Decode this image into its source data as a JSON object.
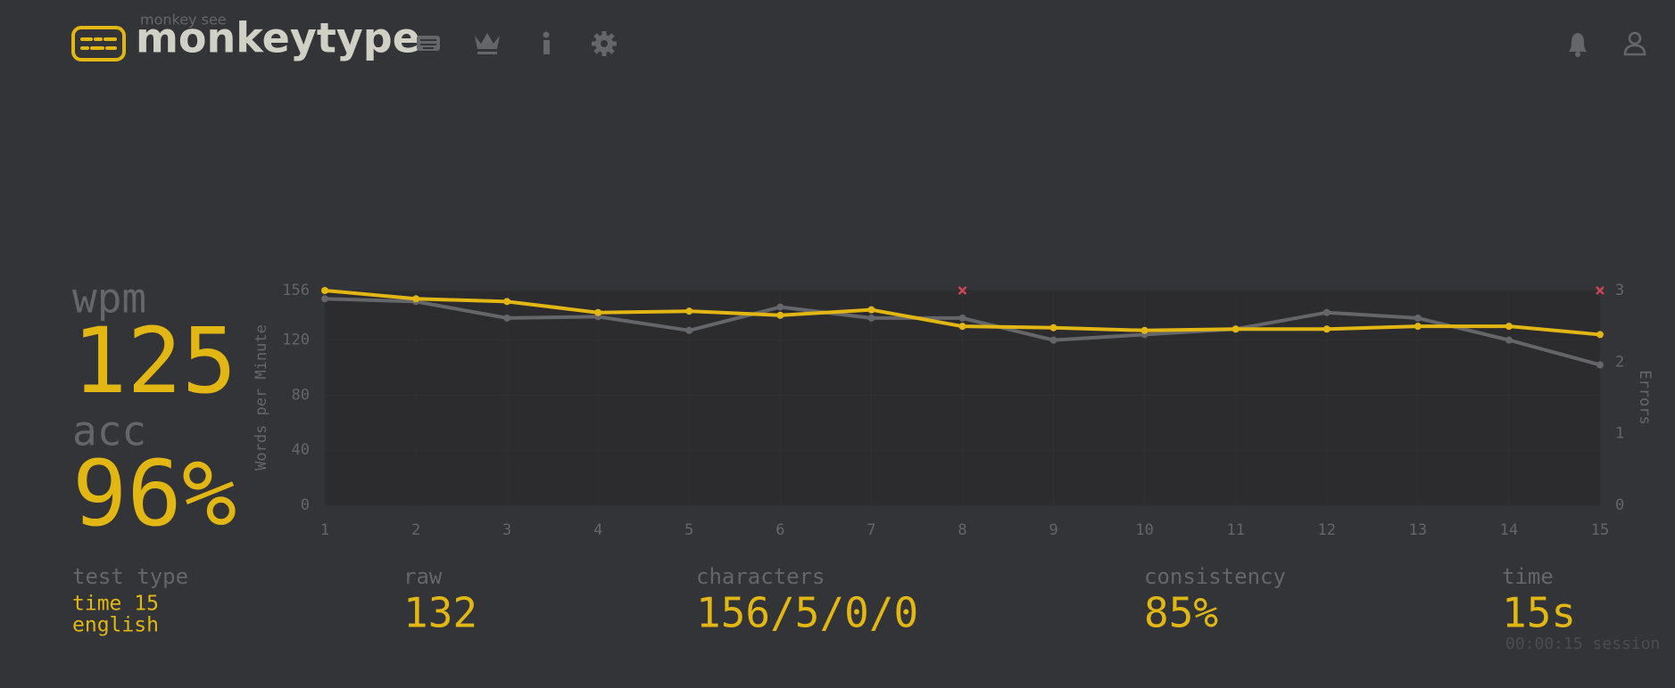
{
  "header": {
    "logo_top": "monkey see",
    "logo": "monkeytype"
  },
  "stats": {
    "wpm_label": "wpm",
    "wpm": "125",
    "acc_label": "acc",
    "acc": "96%",
    "test_type_label": "test type",
    "test_type": [
      "time 15",
      "english"
    ],
    "raw_label": "raw",
    "raw": "132",
    "characters_label": "characters",
    "characters": "156/5/0/0",
    "consistency_label": "consistency",
    "consistency": "85%",
    "time_label": "time",
    "time": "15s",
    "session": "00:00:15 session"
  },
  "chart_data": {
    "type": "line",
    "ylabel": "Words per Minute",
    "y2label": "Errors",
    "x": [
      1,
      2,
      3,
      4,
      5,
      6,
      7,
      8,
      9,
      10,
      11,
      12,
      13,
      14,
      15
    ],
    "xlim": [
      1,
      15
    ],
    "ylim": [
      0,
      156
    ],
    "yticks": [
      0,
      40,
      80,
      120,
      156
    ],
    "y2lim": [
      0,
      3
    ],
    "y2ticks": [
      0,
      1,
      2,
      3
    ],
    "grid": true,
    "series": [
      {
        "color": "#646669",
        "values": [
          150,
          148,
          136,
          137,
          127,
          144,
          136,
          136,
          120,
          124,
          128,
          140,
          136,
          120,
          102
        ]
      },
      {
        "color": "#e2b714",
        "values": [
          156,
          150,
          148,
          140,
          141,
          138,
          142,
          130,
          129,
          127,
          128,
          128,
          130,
          130,
          124
        ]
      },
      {
        "color": "#ca4754",
        "axis": "y2",
        "marker": "x",
        "values": [
          null,
          null,
          null,
          null,
          null,
          null,
          null,
          3,
          null,
          null,
          null,
          null,
          null,
          null,
          3
        ]
      }
    ]
  }
}
